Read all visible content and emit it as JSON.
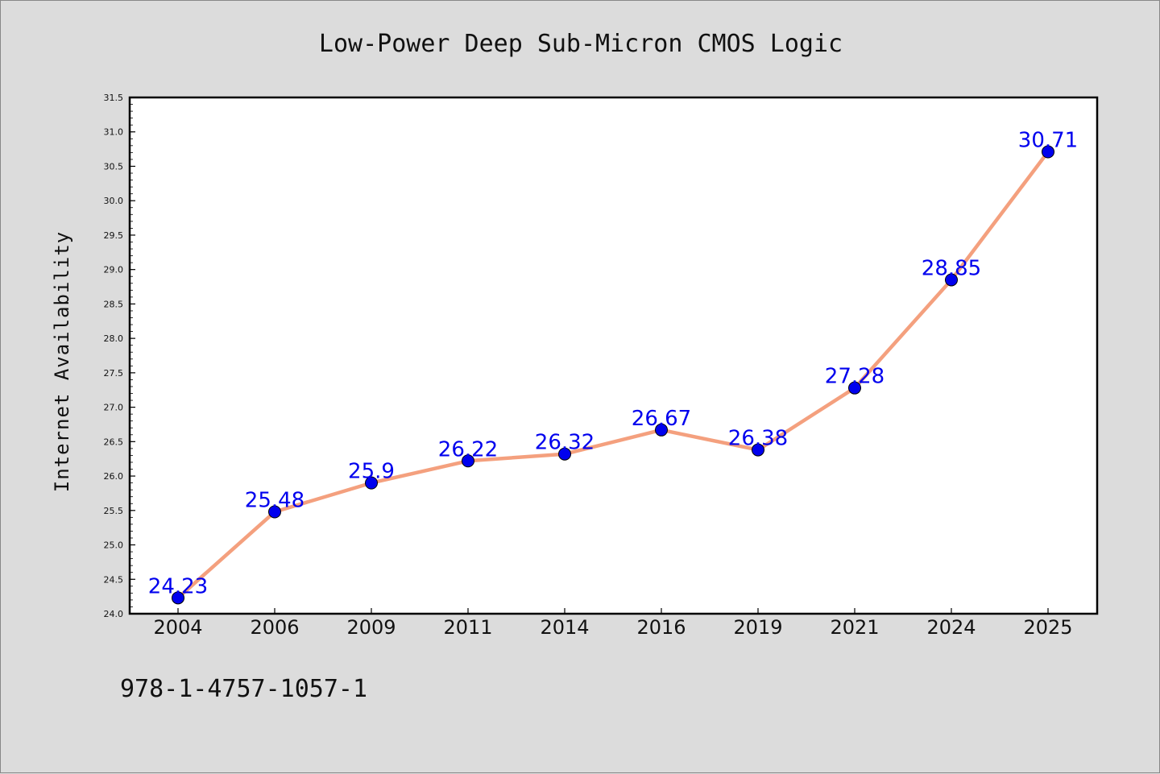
{
  "chart_data": {
    "type": "line",
    "title": "Low-Power Deep Sub-Micron CMOS Logic",
    "ylabel": "Internet Availability",
    "xlabel": "",
    "categories": [
      "2004",
      "2006",
      "2009",
      "2011",
      "2014",
      "2016",
      "2019",
      "2021",
      "2024",
      "2025"
    ],
    "values": [
      24.23,
      25.48,
      25.9,
      26.22,
      26.32,
      26.67,
      26.38,
      27.28,
      28.85,
      30.71
    ],
    "value_labels": [
      "24.23",
      "25.48",
      "25.9",
      "26.22",
      "26.32",
      "26.67",
      "26.38",
      "27.28",
      "28.85",
      "30.71"
    ],
    "ylim": [
      24.0,
      31.5
    ],
    "yticks": [
      "24.0",
      "24.5",
      "25.0",
      "25.5",
      "26.0",
      "26.5",
      "27.0",
      "27.5",
      "28.0",
      "28.5",
      "29.0",
      "29.5",
      "30.0",
      "30.5",
      "31.0",
      "31.5"
    ],
    "grid": false,
    "line_color": "#f4a07e",
    "marker_color": "#0000ee",
    "label_color": "#0000ee"
  },
  "footer": {
    "isbn": "978-1-4757-1057-1"
  }
}
